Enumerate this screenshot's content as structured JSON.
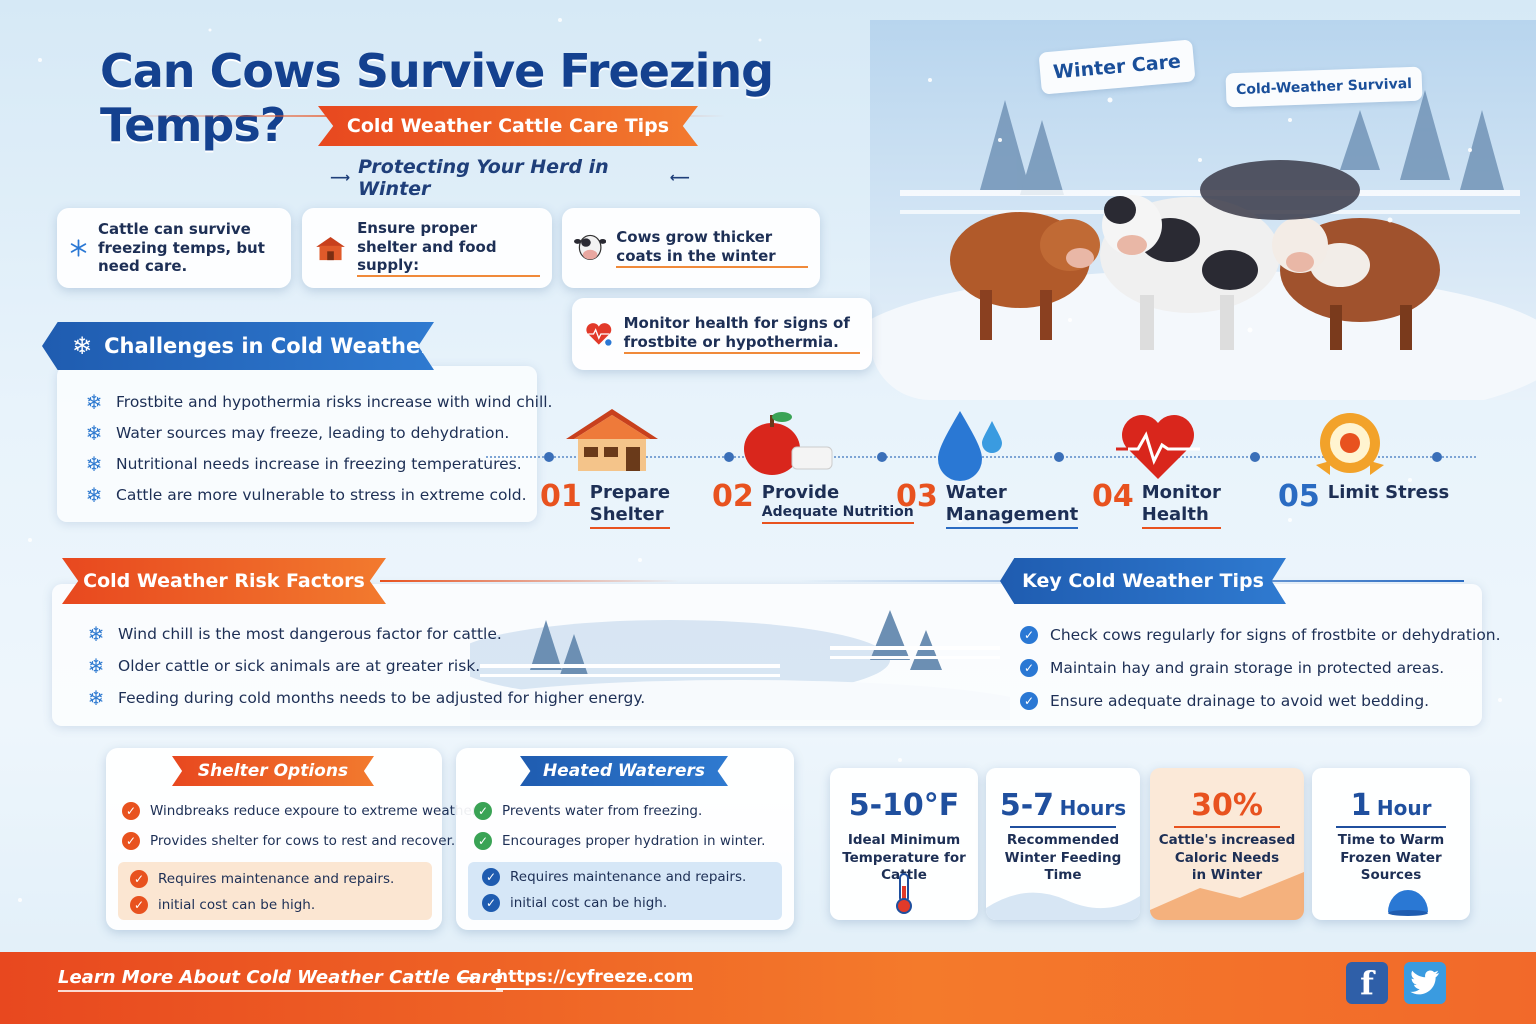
{
  "header": {
    "title": "Can Cows Survive Freezing Temps?",
    "subtitle": "Cold Weather Cattle Care Tips",
    "tagline": "Protecting Your Herd in Winter",
    "tag1": "Winter Care",
    "tag2": "Cold-Weather Survival"
  },
  "facts": [
    {
      "text": "Cattle can survive freezing temps, but need care.",
      "icon": "snowflake-icon"
    },
    {
      "text": "Ensure proper shelter and food supply:",
      "icon": "barn-icon"
    },
    {
      "text": "Cows grow thicker coats in the winter",
      "icon": "cow-face-icon"
    },
    {
      "text": "Monitor health for signs of frostbite or hypothermia.",
      "icon": "heart-monitor-icon"
    }
  ],
  "challenges": {
    "title": "Challenges in Cold Weather",
    "items": [
      "Frostbite and hypothermia risks increase with wind chill.",
      "Water sources may freeze, leading to dehydration.",
      "Nutritional needs increase in freezing temperatures.",
      "Cattle are more vulnerable to stress in extreme cold."
    ]
  },
  "steps": [
    {
      "num": "01",
      "line1": "Prepare",
      "line2": "Shelter",
      "icon": "house-icon"
    },
    {
      "num": "02",
      "line1": "Provide",
      "line2": "Adequate Nutrition",
      "icon": "apple-feed-icon"
    },
    {
      "num": "03",
      "line1": "Water",
      "line2": "Management",
      "icon": "water-drop-icon"
    },
    {
      "num": "04",
      "line1": "Monitor",
      "line2": "Health",
      "icon": "heart-pulse-icon"
    },
    {
      "num": "05",
      "line1": "Limit Stress",
      "line2": "",
      "icon": "medal-icon"
    }
  ],
  "risk_factors": {
    "title": "Cold Weather Risk Factors",
    "items": [
      "Wind chill is the most dangerous factor for cattle.",
      "Older cattle or sick animals are at greater risk.",
      "Feeding during cold months needs to be adjusted for higher energy."
    ]
  },
  "key_tips": {
    "title": "Key Cold Weather Tips",
    "items": [
      "Check cows regularly for signs of frostbite or dehydration.",
      "Maintain hay and grain storage in protected areas.",
      "Ensure adequate drainage to avoid wet bedding."
    ]
  },
  "shelter_options": {
    "title": "Shelter Options",
    "pros": [
      "Windbreaks reduce expoure to extreme weather.",
      "Provides shelter for cows to rest and recover."
    ],
    "cons": [
      "Requires maintenance and repairs.",
      "initial cost can be high."
    ]
  },
  "heated_waterers": {
    "title": "Heated Waterers",
    "pros": [
      "Prevents water from freezing.",
      "Encourages proper hydration in winter."
    ],
    "cons": [
      "Requires maintenance and repairs.",
      "initial cost can be high."
    ]
  },
  "stats": [
    {
      "value": "5-10°F",
      "unit": "",
      "label1": "Ideal Minimum",
      "label2": "Temperature for Cattle",
      "label3": ""
    },
    {
      "value": "5-7",
      "unit": "Hours",
      "label1": "Recommended",
      "label2": "Winter Feeding Time",
      "label3": ""
    },
    {
      "value": "30%",
      "unit": "",
      "label1": "Cattle's increased",
      "label2": "Caloric Needs",
      "label3": "in Winter"
    },
    {
      "value": "1",
      "unit": "Hour",
      "label1": "Time to Warm",
      "label2": "Frozen Water Sources",
      "label3": ""
    }
  ],
  "footer": {
    "text": "Learn More About Cold Weather Cattle Care",
    "link": "https://cyfreeze.com",
    "facebook": "f",
    "twitter_icon": "twitter-bird-icon"
  },
  "colors": {
    "brand_blue": "#1f5cb0",
    "brand_orange": "#e8521f",
    "title_blue": "#14418f"
  }
}
